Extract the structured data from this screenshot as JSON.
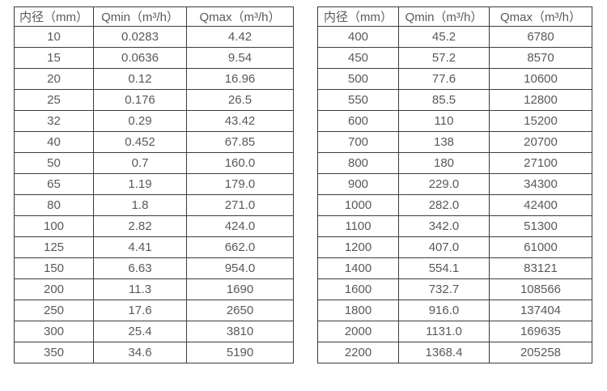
{
  "colors": {
    "background": "#ffffff",
    "text": "#595959",
    "border": "#3b3b3b"
  },
  "tables": [
    {
      "headers": [
        "内径（mm）",
        "Qmin（m³/h）",
        "Qmax（m³/h）"
      ],
      "rows": [
        [
          "10",
          "0.0283",
          "4.42"
        ],
        [
          "15",
          "0.0636",
          "9.54"
        ],
        [
          "20",
          "0.12",
          "16.96"
        ],
        [
          "25",
          "0.176",
          "26.5"
        ],
        [
          "32",
          "0.29",
          "43.42"
        ],
        [
          "40",
          "0.452",
          "67.85"
        ],
        [
          "50",
          "0.7",
          "160.0"
        ],
        [
          "65",
          "1.19",
          "179.0"
        ],
        [
          "80",
          "1.8",
          "271.0"
        ],
        [
          "100",
          "2.82",
          "424.0"
        ],
        [
          "125",
          "4.41",
          "662.0"
        ],
        [
          "150",
          "6.63",
          "954.0"
        ],
        [
          "200",
          "11.3",
          "1690"
        ],
        [
          "250",
          "17.6",
          "2650"
        ],
        [
          "300",
          "25.4",
          "3810"
        ],
        [
          "350",
          "34.6",
          "5190"
        ]
      ]
    },
    {
      "headers": [
        "内径（mm）",
        "Qmin（m³/h）",
        "Qmax（m³/h）"
      ],
      "rows": [
        [
          "400",
          "45.2",
          "6780"
        ],
        [
          "450",
          "57.2",
          "8570"
        ],
        [
          "500",
          "77.6",
          "10600"
        ],
        [
          "550",
          "85.5",
          "12800"
        ],
        [
          "600",
          "110",
          "15200"
        ],
        [
          "700",
          "138",
          "20700"
        ],
        [
          "800",
          "180",
          "27100"
        ],
        [
          "900",
          "229.0",
          "34300"
        ],
        [
          "1000",
          "282.0",
          "42400"
        ],
        [
          "1100",
          "342.0",
          "51300"
        ],
        [
          "1200",
          "407.0",
          "61000"
        ],
        [
          "1400",
          "554.1",
          "83121"
        ],
        [
          "1600",
          "732.7",
          "108566"
        ],
        [
          "1800",
          "916.0",
          "137404"
        ],
        [
          "2000",
          "1131.0",
          "169635"
        ],
        [
          "2200",
          "1368.4",
          "205258"
        ]
      ]
    }
  ]
}
